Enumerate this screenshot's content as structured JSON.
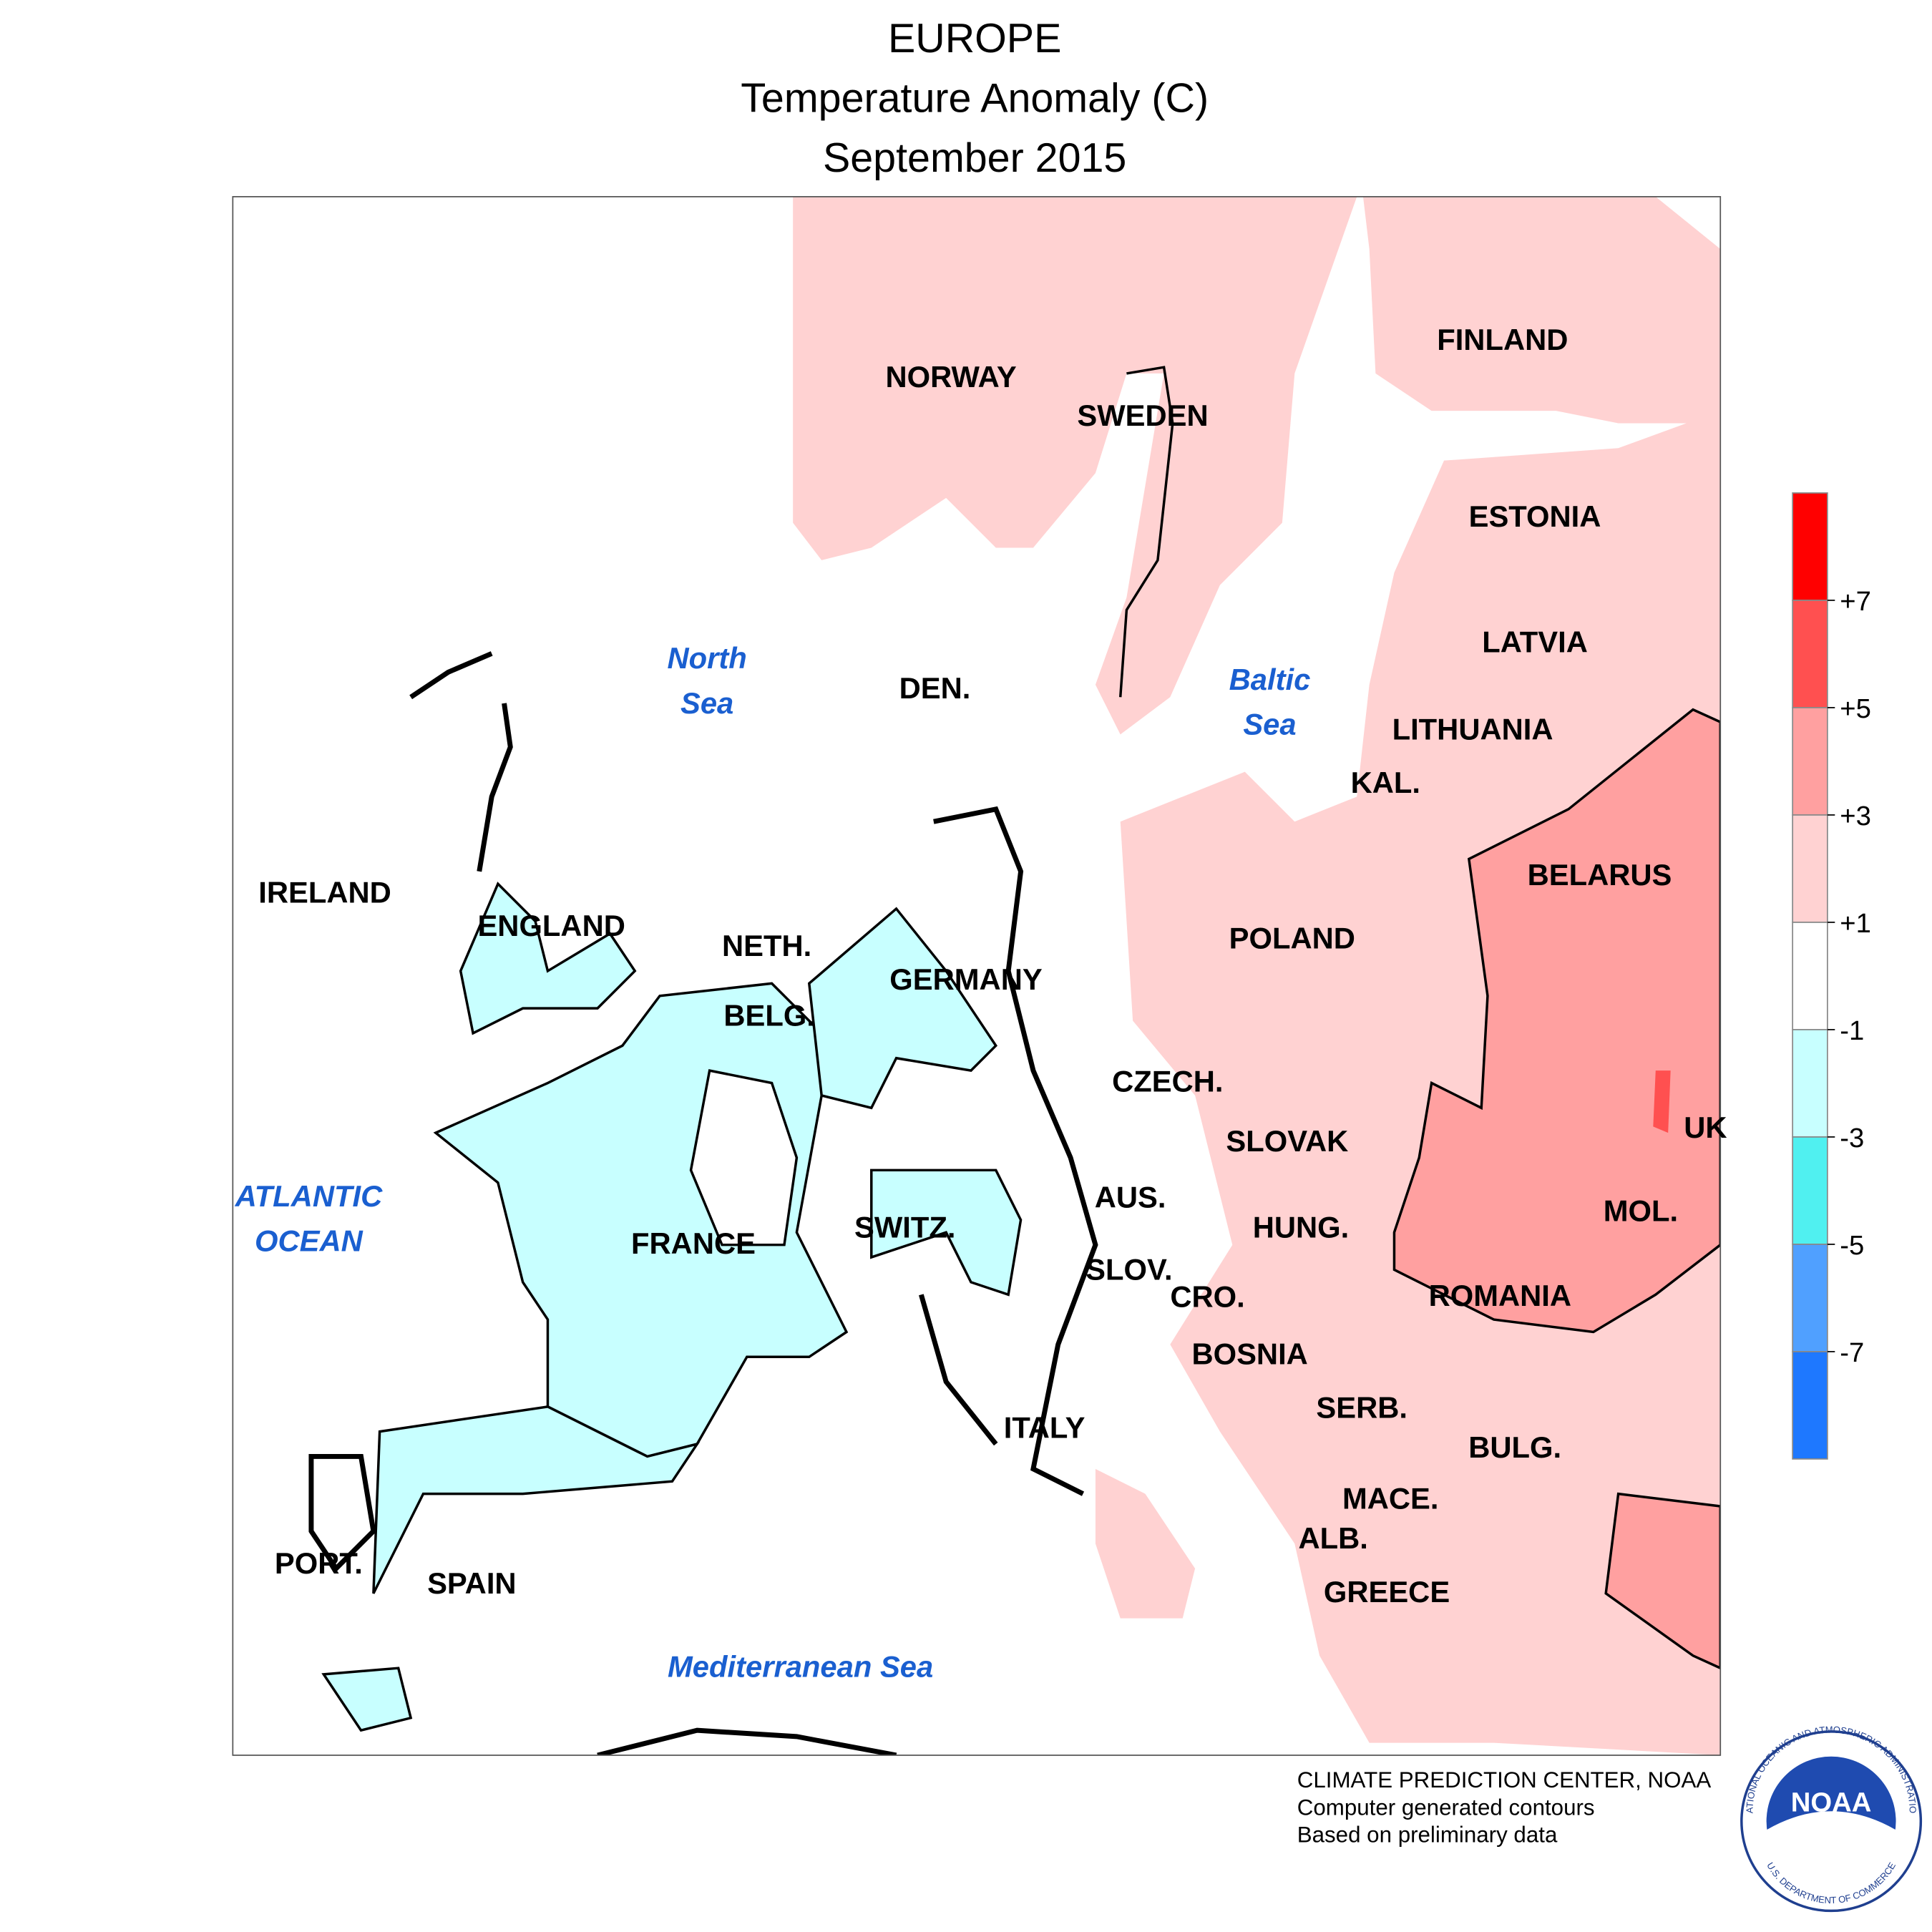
{
  "title": {
    "lines": [
      "EUROPE",
      "Temperature Anomaly (C)",
      "September 2015"
    ]
  },
  "countries": [
    "NORWAY",
    "SWEDEN",
    "FINLAND",
    "ESTONIA",
    "LATVIA",
    "LITHUANIA",
    "KAL.",
    "DEN.",
    "IRELAND",
    "ENGLAND",
    "NETH.",
    "GERMANY",
    "BELG.",
    "POLAND",
    "BELARUS",
    "CZECH.",
    "SLOVAK",
    "UK",
    "AUS.",
    "HUNG.",
    "MOL.",
    "SWITZ.",
    "FRANCE",
    "SLOV.",
    "CRO.",
    "ROMANIA",
    "BOSNIA",
    "SERB.",
    "ITALY",
    "BULG.",
    "MACE.",
    "ALB.",
    "GREECE",
    "PORT.",
    "SPAIN"
  ],
  "seas": [
    {
      "lines": [
        "North",
        "Sea"
      ]
    },
    {
      "lines": [
        "Baltic",
        "Sea"
      ]
    },
    {
      "lines": [
        "ATLANTIC",
        "OCEAN"
      ]
    },
    {
      "lines": [
        "Mediterranean Sea"
      ]
    }
  ],
  "colorbar": {
    "ticks": [
      {
        "value": 7,
        "label": "+7"
      },
      {
        "value": 5,
        "label": "+5"
      },
      {
        "value": 3,
        "label": "+3"
      },
      {
        "value": 1,
        "label": "+1"
      },
      -1,
      -3,
      -5,
      -7
    ],
    "colors": [
      "#ff0000",
      "#ff5050",
      "#ffa0a0",
      "#ffd2d2",
      "#ffffff",
      "#c8ffff",
      "#50f0f0",
      "#50a0ff",
      "#1e78ff"
    ]
  },
  "footer": [
    "CLIMATE PREDICTION CENTER, NOAA",
    "Computer generated contours",
    "Based on preliminary data"
  ],
  "logo": {
    "text": "NOAA",
    "ring_top": "NATIONAL OCEANIC AND ATMOSPHERIC ADMINISTRATION",
    "ring_bottom": "U.S. DEPARTMENT OF COMMERCE"
  }
}
